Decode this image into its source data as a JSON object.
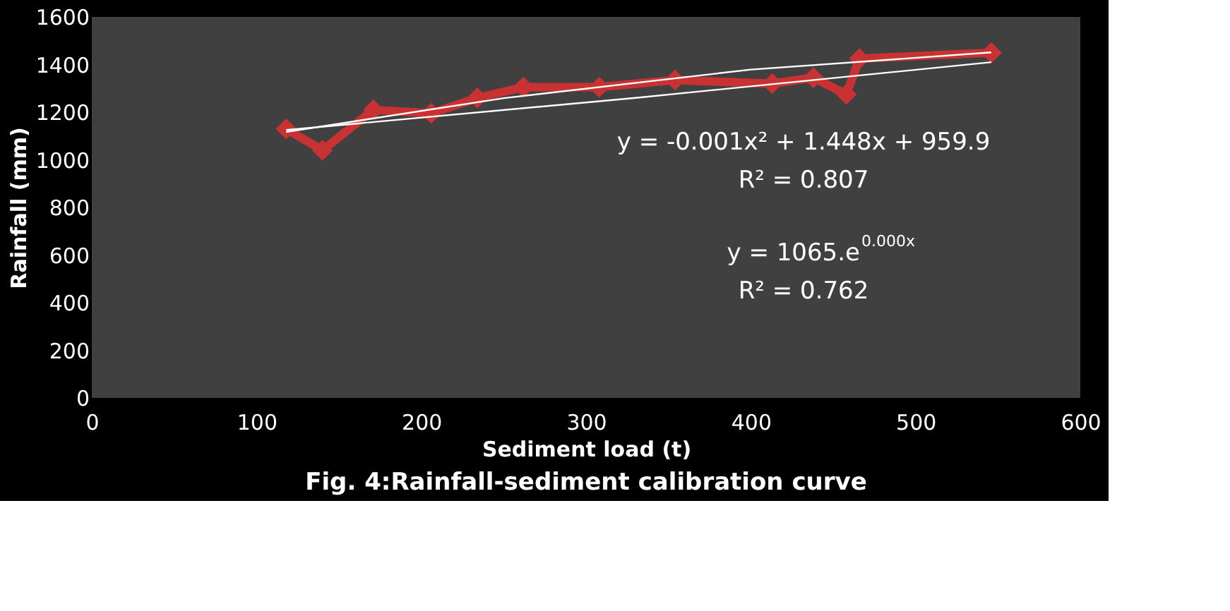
{
  "chart_data": {
    "type": "line",
    "title": "Fig. 4:Rainfall-sediment calibration  curve",
    "xlabel": "Sediment load  (t)",
    "ylabel": "Rainfall (mm)",
    "xlim": [
      0,
      600
    ],
    "xticks": [
      0,
      100,
      200,
      300,
      400,
      500,
      600
    ],
    "ylim": [
      0,
      1600
    ],
    "yticks": [
      0,
      200,
      400,
      600,
      800,
      1000,
      1200,
      1400,
      1600
    ],
    "grid": false,
    "legend": false,
    "marker": "diamond",
    "line_style": "solid",
    "series": [
      {
        "color": "#c83232",
        "x": [
          118,
          140,
          171,
          206,
          234,
          262,
          308,
          354,
          413,
          438,
          458,
          466,
          546
        ],
        "values": [
          1130,
          1040,
          1210,
          1195,
          1260,
          1305,
          1305,
          1335,
          1320,
          1345,
          1275,
          1425,
          1450
        ]
      },
      {
        "type": "line",
        "color": "#ffffff",
        "marker": "none",
        "x": [
          118,
          250,
          400,
          546
        ],
        "values": [
          1117,
          1259,
          1379,
          1451
        ]
      },
      {
        "type": "line",
        "color": "#ffffff",
        "marker": "none",
        "x": [
          118,
          330,
          546
        ],
        "values": [
          1125,
          1260,
          1410
        ]
      }
    ],
    "annotations": [
      "y = -0.001x² + 1.448x + 959.9",
      "R² = 0.807",
      "y = 1065.e$^{0.000x}$",
      "R² = 0.762"
    ]
  }
}
